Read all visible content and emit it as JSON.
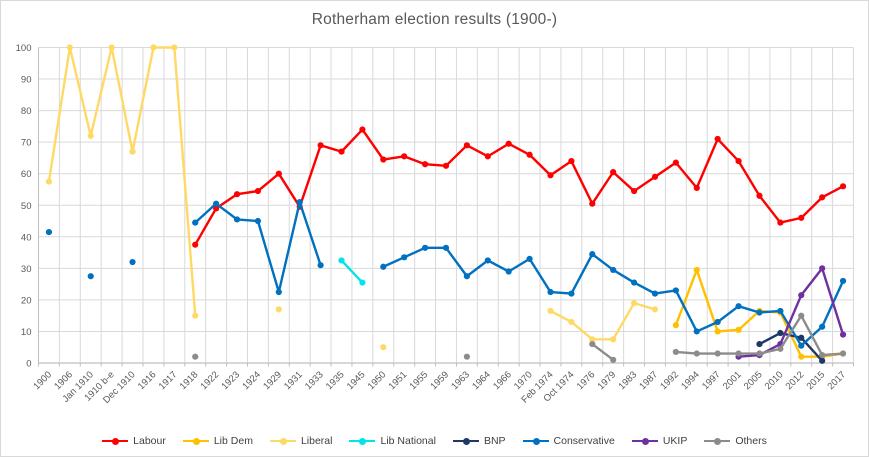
{
  "chart_data": {
    "type": "line",
    "title": "Rotherham election results (1900-)",
    "xlabel": "",
    "ylabel": "",
    "ylim": [
      0,
      100
    ],
    "y_ticks": [
      0,
      10,
      20,
      30,
      40,
      50,
      60,
      70,
      80,
      90,
      100
    ],
    "grid": true,
    "legend_position": "bottom",
    "marker": "circle",
    "categories": [
      "1900",
      "1906",
      "Jan 1910",
      "1910 b-e",
      "Dec 1910",
      "1916",
      "1917",
      "1918",
      "1922",
      "1923",
      "1924",
      "1929",
      "1931",
      "1933",
      "1935",
      "1945",
      "1950",
      "1951",
      "1955",
      "1959",
      "1963",
      "1964",
      "1966",
      "1970",
      "Feb 1974",
      "Oct 1974",
      "1976",
      "1979",
      "1983",
      "1987",
      "1992",
      "1994",
      "1997",
      "2001",
      "2005",
      "2010",
      "2012",
      "2015",
      "2017"
    ],
    "series": [
      {
        "name": "Labour",
        "color": "#FF0000",
        "values": [
          null,
          null,
          null,
          null,
          null,
          null,
          null,
          37.5,
          49,
          53.5,
          54.5,
          60,
          49.5,
          69,
          67,
          74,
          64.5,
          65.5,
          63,
          62.5,
          69,
          65.5,
          69.5,
          66,
          59.5,
          64,
          50.5,
          60.5,
          54.5,
          59,
          63.5,
          55.5,
          71,
          64,
          53,
          44.5,
          46,
          52.5,
          56
        ]
      },
      {
        "name": "Lib Dem",
        "color": "#FFC000",
        "values": [
          null,
          null,
          null,
          null,
          null,
          null,
          null,
          null,
          null,
          null,
          null,
          null,
          null,
          null,
          null,
          null,
          null,
          null,
          null,
          null,
          null,
          null,
          null,
          null,
          null,
          null,
          null,
          null,
          null,
          null,
          12,
          29.5,
          10,
          10.5,
          16.5,
          16,
          2,
          2,
          3
        ]
      },
      {
        "name": "Liberal",
        "color": "#FFD966",
        "values": [
          57.5,
          100,
          72,
          100,
          67,
          100,
          100,
          15,
          null,
          null,
          null,
          17,
          null,
          null,
          null,
          null,
          5,
          null,
          null,
          null,
          null,
          null,
          null,
          null,
          16.5,
          13,
          7.5,
          7.5,
          19,
          17,
          null,
          null,
          null,
          null,
          null,
          null,
          null,
          null,
          null
        ]
      },
      {
        "name": "Lib National",
        "color": "#00E6E6",
        "values": [
          null,
          null,
          null,
          null,
          null,
          null,
          null,
          null,
          null,
          null,
          null,
          null,
          null,
          null,
          32.5,
          25.5,
          null,
          null,
          null,
          null,
          null,
          null,
          null,
          null,
          null,
          null,
          null,
          null,
          null,
          null,
          null,
          null,
          null,
          null,
          null,
          null,
          null,
          null,
          null
        ]
      },
      {
        "name": "BNP",
        "color": "#1F3864",
        "values": [
          null,
          null,
          null,
          null,
          null,
          null,
          null,
          null,
          null,
          null,
          null,
          null,
          null,
          null,
          null,
          null,
          null,
          null,
          null,
          null,
          null,
          null,
          null,
          null,
          null,
          null,
          null,
          null,
          null,
          null,
          null,
          null,
          null,
          null,
          6,
          9.5,
          8,
          0.7,
          null
        ]
      },
      {
        "name": "Conservative",
        "color": "#0070C0",
        "values": [
          41.5,
          null,
          27.5,
          null,
          32,
          null,
          null,
          44.5,
          50.5,
          45.5,
          45,
          22.5,
          51,
          31,
          null,
          null,
          30.5,
          33.5,
          36.5,
          36.5,
          27.5,
          32.5,
          29,
          33,
          22.5,
          22,
          34.5,
          29.5,
          25.5,
          22,
          23,
          10,
          13,
          18,
          16,
          16.5,
          5.5,
          11.5,
          26
        ]
      },
      {
        "name": "UKIP",
        "color": "#7030A0",
        "values": [
          null,
          null,
          null,
          null,
          null,
          null,
          null,
          null,
          null,
          null,
          null,
          null,
          null,
          null,
          null,
          null,
          null,
          null,
          null,
          null,
          null,
          null,
          null,
          null,
          null,
          null,
          null,
          null,
          null,
          null,
          null,
          null,
          null,
          2,
          2.5,
          6,
          21.5,
          30,
          9
        ]
      },
      {
        "name": "Others",
        "color": "#8C8C8C",
        "values": [
          null,
          null,
          null,
          null,
          null,
          null,
          null,
          2,
          null,
          null,
          null,
          null,
          null,
          null,
          null,
          null,
          null,
          null,
          null,
          null,
          2,
          null,
          null,
          null,
          null,
          null,
          6,
          1,
          null,
          null,
          3.5,
          3,
          3,
          3,
          3,
          4.5,
          15,
          2.5,
          3
        ]
      }
    ]
  },
  "style": {
    "gridline_color": "#D9D9D9",
    "axis_line_color": "#BFBFBF",
    "tick_label_color": "#595959",
    "title_color": "#595959",
    "legend_text_color": "#404040",
    "background": "#FFFFFF"
  }
}
